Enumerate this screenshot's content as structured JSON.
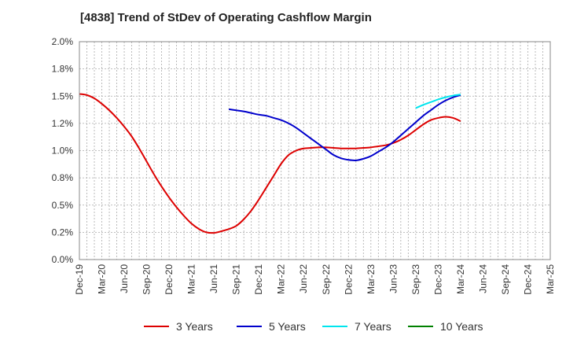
{
  "chart_data": {
    "type": "line",
    "title": "[4838]  Trend of StDev of Operating Cashflow Margin",
    "xlabel": "",
    "ylabel": "",
    "ylim": [
      0,
      2.0
    ],
    "y_ticks": [
      "0.0%",
      "0.2%",
      "0.5%",
      "0.8%",
      "1.0%",
      "1.2%",
      "1.5%",
      "1.8%",
      "2.0%"
    ],
    "x_ticks": [
      "Dec-19",
      "Mar-20",
      "Jun-20",
      "Sep-20",
      "Dec-20",
      "Mar-21",
      "Jun-21",
      "Sep-21",
      "Dec-21",
      "Mar-22",
      "Jun-22",
      "Sep-22",
      "Dec-22",
      "Mar-23",
      "Jun-23",
      "Sep-23",
      "Dec-23",
      "Mar-24",
      "Jun-24",
      "Sep-24",
      "Dec-24",
      "Mar-25"
    ],
    "grid": true,
    "legend_position": "bottom",
    "series": [
      {
        "name": "3 Years",
        "color": "#dd0000",
        "points": [
          [
            "Dec-19",
            1.52
          ],
          [
            "Jan-20",
            1.51
          ],
          [
            "Feb-20",
            1.48
          ],
          [
            "Mar-20",
            1.43
          ],
          [
            "Apr-20",
            1.37
          ],
          [
            "May-20",
            1.3
          ],
          [
            "Jun-20",
            1.22
          ],
          [
            "Jul-20",
            1.13
          ],
          [
            "Aug-20",
            1.02
          ],
          [
            "Sep-20",
            0.9
          ],
          [
            "Oct-20",
            0.78
          ],
          [
            "Nov-20",
            0.67
          ],
          [
            "Dec-20",
            0.57
          ],
          [
            "Jan-21",
            0.48
          ],
          [
            "Feb-21",
            0.4
          ],
          [
            "Mar-21",
            0.33
          ],
          [
            "Apr-21",
            0.28
          ],
          [
            "May-21",
            0.25
          ],
          [
            "Jun-21",
            0.245
          ],
          [
            "Jul-21",
            0.26
          ],
          [
            "Aug-21",
            0.28
          ],
          [
            "Sep-21",
            0.31
          ],
          [
            "Oct-21",
            0.37
          ],
          [
            "Nov-21",
            0.45
          ],
          [
            "Dec-21",
            0.55
          ],
          [
            "Jan-22",
            0.66
          ],
          [
            "Feb-22",
            0.77
          ],
          [
            "Mar-22",
            0.88
          ],
          [
            "Apr-22",
            0.96
          ],
          [
            "May-22",
            1.0
          ],
          [
            "Jun-22",
            1.02
          ],
          [
            "Jul-22",
            1.025
          ],
          [
            "Aug-22",
            1.03
          ],
          [
            "Sep-22",
            1.03
          ],
          [
            "Oct-22",
            1.025
          ],
          [
            "Nov-22",
            1.02
          ],
          [
            "Dec-22",
            1.02
          ],
          [
            "Jan-23",
            1.02
          ],
          [
            "Feb-23",
            1.025
          ],
          [
            "Mar-23",
            1.03
          ],
          [
            "Apr-23",
            1.04
          ],
          [
            "May-23",
            1.05
          ],
          [
            "Jun-23",
            1.07
          ],
          [
            "Jul-23",
            1.1
          ],
          [
            "Aug-23",
            1.14
          ],
          [
            "Sep-23",
            1.19
          ],
          [
            "Oct-23",
            1.24
          ],
          [
            "Nov-23",
            1.28
          ],
          [
            "Dec-23",
            1.3
          ],
          [
            "Jan-24",
            1.31
          ],
          [
            "Feb-24",
            1.3
          ],
          [
            "Mar-24",
            1.27
          ]
        ]
      },
      {
        "name": "5 Years",
        "color": "#0000cc",
        "points": [
          [
            "Aug-21",
            1.38
          ],
          [
            "Sep-21",
            1.37
          ],
          [
            "Oct-21",
            1.36
          ],
          [
            "Nov-21",
            1.345
          ],
          [
            "Dec-21",
            1.33
          ],
          [
            "Jan-22",
            1.32
          ],
          [
            "Feb-22",
            1.3
          ],
          [
            "Mar-22",
            1.28
          ],
          [
            "Apr-22",
            1.25
          ],
          [
            "May-22",
            1.21
          ],
          [
            "Jun-22",
            1.16
          ],
          [
            "Jul-22",
            1.11
          ],
          [
            "Aug-22",
            1.06
          ],
          [
            "Sep-22",
            1.01
          ],
          [
            "Oct-22",
            0.96
          ],
          [
            "Nov-22",
            0.93
          ],
          [
            "Dec-22",
            0.915
          ],
          [
            "Jan-23",
            0.91
          ],
          [
            "Feb-23",
            0.925
          ],
          [
            "Mar-23",
            0.95
          ],
          [
            "Apr-23",
            0.99
          ],
          [
            "May-23",
            1.03
          ],
          [
            "Jun-23",
            1.08
          ],
          [
            "Jul-23",
            1.14
          ],
          [
            "Aug-23",
            1.2
          ],
          [
            "Sep-23",
            1.26
          ],
          [
            "Oct-23",
            1.32
          ],
          [
            "Nov-23",
            1.37
          ],
          [
            "Dec-23",
            1.42
          ],
          [
            "Jan-24",
            1.46
          ],
          [
            "Feb-24",
            1.49
          ],
          [
            "Mar-24",
            1.51
          ]
        ]
      },
      {
        "name": "7 Years",
        "color": "#00e5ee",
        "points": [
          [
            "Sep-23",
            1.39
          ],
          [
            "Oct-23",
            1.42
          ],
          [
            "Nov-23",
            1.445
          ],
          [
            "Dec-23",
            1.47
          ],
          [
            "Jan-24",
            1.49
          ],
          [
            "Feb-24",
            1.505
          ],
          [
            "Mar-24",
            1.515
          ]
        ]
      },
      {
        "name": "10 Years",
        "color": "#008000",
        "points": []
      }
    ]
  }
}
